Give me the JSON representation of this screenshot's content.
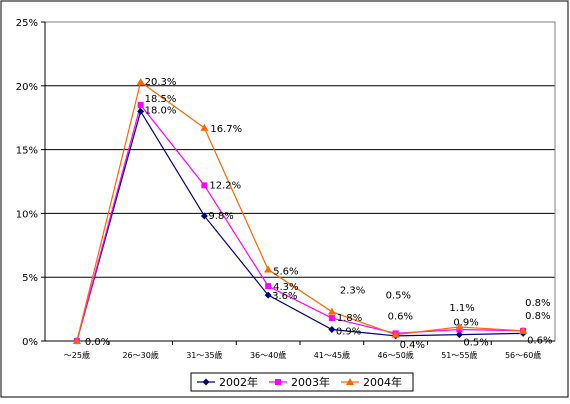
{
  "chart_data": {
    "type": "line",
    "categories": [
      "～25歳",
      "26～30歳",
      "31～35歳",
      "36～40歳",
      "41～45歳",
      "46～50歳",
      "51～55歳",
      "56～60歳"
    ],
    "series": [
      {
        "name": "2002年",
        "color": "#000080",
        "marker": "diamond",
        "values": [
          0.0,
          18.0,
          9.8,
          3.6,
          0.9,
          0.4,
          0.5,
          0.6
        ],
        "labels": [
          "",
          "18.0%",
          "9.8%",
          "3.6%",
          "0.9%",
          "0.4%",
          "0.5%",
          "0.6%"
        ]
      },
      {
        "name": "2003年",
        "color": "#ff00ff",
        "marker": "square",
        "values": [
          0.0,
          18.5,
          12.2,
          4.3,
          1.8,
          0.6,
          0.9,
          0.8
        ],
        "labels": [
          "",
          "18.5%",
          "12.2%",
          "4.3%",
          "1.8%",
          "0.6%",
          "0.9%",
          "0.8%"
        ]
      },
      {
        "name": "2004年",
        "color": "#ff6600",
        "marker": "triangle",
        "values": [
          0.0,
          20.3,
          16.7,
          5.6,
          2.3,
          0.5,
          1.1,
          0.8
        ],
        "labels": [
          "0.0%",
          "20.3%",
          "16.7%",
          "5.6%",
          "2.3%",
          "0.5%",
          "1.1%",
          "0.8%"
        ]
      }
    ],
    "yticks": [
      "0%",
      "5%",
      "10%",
      "15%",
      "20%",
      "25%"
    ],
    "ylim": [
      0,
      25
    ],
    "grid": true,
    "legend_position": "bottom"
  }
}
